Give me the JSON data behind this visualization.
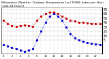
{
  "title": "Milwaukee Weather  Outdoor Temperature (vs) THSW Index per Hour (Last 24 Hours)",
  "hours": [
    0,
    1,
    2,
    3,
    4,
    5,
    6,
    7,
    8,
    9,
    10,
    11,
    12,
    13,
    14,
    15,
    16,
    17,
    18,
    19,
    20,
    21,
    22,
    23
  ],
  "temp": [
    50,
    42,
    38,
    36,
    38,
    40,
    38,
    36,
    50,
    60,
    65,
    68,
    68,
    65,
    60,
    55,
    50,
    48,
    46,
    45,
    44,
    43,
    42,
    42
  ],
  "thsw": [
    -5,
    -8,
    -12,
    -15,
    -18,
    -20,
    -18,
    -15,
    5,
    25,
    45,
    60,
    65,
    60,
    50,
    35,
    20,
    10,
    5,
    2,
    0,
    -2,
    -3,
    -5
  ],
  "temp_color": "#cc0000",
  "thsw_color": "#0000cc",
  "bg_color": "#ffffff",
  "grid_color": "#aaaaaa",
  "ylim": [
    -25,
    80
  ],
  "yticks": [
    5,
    15,
    25,
    35,
    45,
    55,
    65,
    75
  ],
  "ytick_labels": [
    "5",
    "15",
    "25",
    "35",
    "45",
    "55",
    "65",
    "75"
  ],
  "xtick_step": 2,
  "ylabel_fontsize": 3.5,
  "title_fontsize": 3.2,
  "tick_fontsize": 2.8
}
